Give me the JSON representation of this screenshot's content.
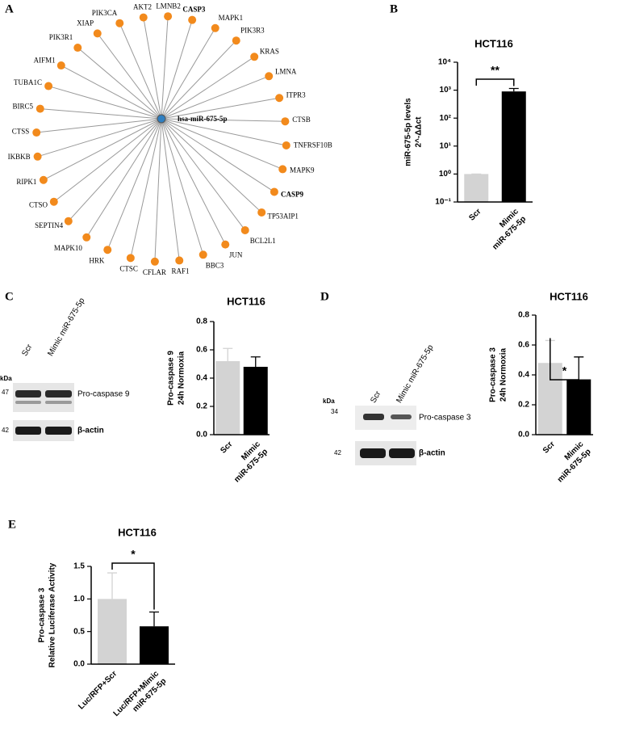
{
  "panel_labels": [
    "A",
    "B",
    "C",
    "D",
    "E"
  ],
  "network": {
    "center": {
      "label": "hsa-miR-675-5p",
      "bold": true,
      "color": "#2f7fc1"
    },
    "node_color": "#f28a1c",
    "nodes": [
      {
        "label": "LMNB2"
      },
      {
        "label": "CASP3",
        "bold": true
      },
      {
        "label": "MAPK1"
      },
      {
        "label": "PIK3R3"
      },
      {
        "label": "KRAS"
      },
      {
        "label": "LMNA"
      },
      {
        "label": "ITPR3"
      },
      {
        "label": "CTSB"
      },
      {
        "label": "TNFRSF10B"
      },
      {
        "label": "MAPK9"
      },
      {
        "label": "CASP9",
        "bold": true
      },
      {
        "label": "TP53AIP1"
      },
      {
        "label": "BCL2L1"
      },
      {
        "label": "JUN"
      },
      {
        "label": "BBC3"
      },
      {
        "label": "RAF1"
      },
      {
        "label": "CFLAR"
      },
      {
        "label": "CTSC"
      },
      {
        "label": "HRK"
      },
      {
        "label": "MAPK10"
      },
      {
        "label": "SEPTIN4"
      },
      {
        "label": "CTSO"
      },
      {
        "label": "RIPK1"
      },
      {
        "label": "IKBKB"
      },
      {
        "label": "CTSS"
      },
      {
        "label": "BIRC5"
      },
      {
        "label": "TUBA1C"
      },
      {
        "label": "AIFM1"
      },
      {
        "label": "PIK3R1"
      },
      {
        "label": "XIAP"
      },
      {
        "label": "PIK3CA"
      },
      {
        "label": "AKT2"
      }
    ]
  },
  "blots": [
    {
      "kda_label": "kDa",
      "lanes": [
        "Scr",
        "Mimic miR-675-5p"
      ],
      "markers": [
        "47",
        "42"
      ],
      "bands": [
        "Pro-caspase 9",
        "β-actin"
      ]
    },
    {
      "kda_label": "kDa",
      "lanes": [
        "Scr",
        "Mimic miR-675-5p"
      ],
      "markers": [
        "34",
        "42"
      ],
      "bands": [
        "Pro-caspase 3",
        "β-actin"
      ]
    }
  ],
  "chart_data": [
    {
      "type": "bar",
      "title": "HCT116",
      "y_label": [
        "miR-675-5p levels",
        "2^-ΔΔct"
      ],
      "categories": [
        [
          "Scr"
        ],
        [
          "Mimic",
          "miR-675-5p"
        ]
      ],
      "values": [
        1,
        900
      ],
      "errors": [
        0,
        250
      ],
      "colors": [
        "#d3d3d3",
        "#000000"
      ],
      "log_scale": true,
      "ylim": [
        0.1,
        10000
      ],
      "yticks": [
        {
          "value": 0.1,
          "label": "10⁻¹"
        },
        {
          "value": 1,
          "label": "10⁰"
        },
        {
          "value": 10,
          "label": "10¹"
        },
        {
          "value": 100,
          "label": "10²"
        },
        {
          "value": 1000,
          "label": "10³"
        },
        {
          "value": 10000,
          "label": "10⁴"
        }
      ],
      "significance": "**"
    },
    {
      "type": "bar",
      "title": "HCT116",
      "y_label": [
        "Pro-caspase 9",
        "24h Normoxia"
      ],
      "categories": [
        [
          "Scr"
        ],
        [
          "Mimic",
          "miR-675-5p"
        ]
      ],
      "values": [
        0.52,
        0.48
      ],
      "errors": [
        0.09,
        0.07
      ],
      "colors": [
        "#d3d3d3",
        "#000000"
      ],
      "ylim": [
        0,
        0.8
      ],
      "yticks": [
        {
          "value": 0,
          "label": "0.0"
        },
        0.2,
        0.4,
        0.6,
        0.8
      ]
    },
    {
      "type": "bar",
      "title": "HCT116",
      "y_label": [
        "Pro-caspase 3",
        "24h Normoxia"
      ],
      "categories": [
        [
          "Scr"
        ],
        [
          "Mimic",
          "miR-675-5p"
        ]
      ],
      "values": [
        0.48,
        0.37
      ],
      "errors": [
        0.15,
        0.15
      ],
      "colors": [
        "#d3d3d3",
        "#000000"
      ],
      "ylim": [
        0,
        0.8
      ],
      "yticks": [
        {
          "value": 0,
          "label": "0.0"
        },
        0.2,
        0.4,
        0.6,
        0.8
      ],
      "significance": "*"
    },
    {
      "type": "bar",
      "title": "HCT116",
      "y_label": [
        "Pro-caspase 3",
        "Relative Luciferase Activity"
      ],
      "categories": [
        [
          "Luc/RFP+Scr"
        ],
        [
          "Luc/RFP+Mimic",
          "miR-675-5p"
        ]
      ],
      "values": [
        1.0,
        0.58
      ],
      "errors": [
        0.4,
        0.22
      ],
      "colors": [
        "#d3d3d3",
        "#000000"
      ],
      "ylim": [
        0,
        1.5
      ],
      "yticks": [
        {
          "value": 0,
          "label": "0.0"
        },
        0.5,
        {
          "value": 1,
          "label": "1.0"
        },
        1.5
      ],
      "significance": "*"
    }
  ]
}
